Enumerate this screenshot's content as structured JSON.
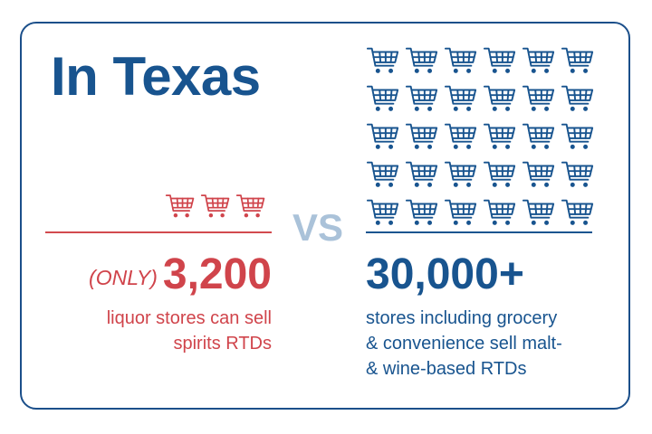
{
  "title": "In Texas",
  "vs_label": "VS",
  "colors": {
    "red": "#d0444b",
    "blue": "#18548f",
    "vs": "#aac2d9"
  },
  "left": {
    "icon": "shopping-cart-icon",
    "cart_count": 3,
    "qualifier": "(ONLY)",
    "number": "3,200",
    "desc_line1": "liquor stores can sell",
    "desc_line2": "spirits RTDs"
  },
  "right": {
    "icon": "shopping-cart-icon",
    "cart_count": 30,
    "number": "30,000+",
    "desc_line1": "stores including  grocery",
    "desc_line2": "& convenience sell malt-",
    "desc_line3": "& wine-based RTDs"
  }
}
